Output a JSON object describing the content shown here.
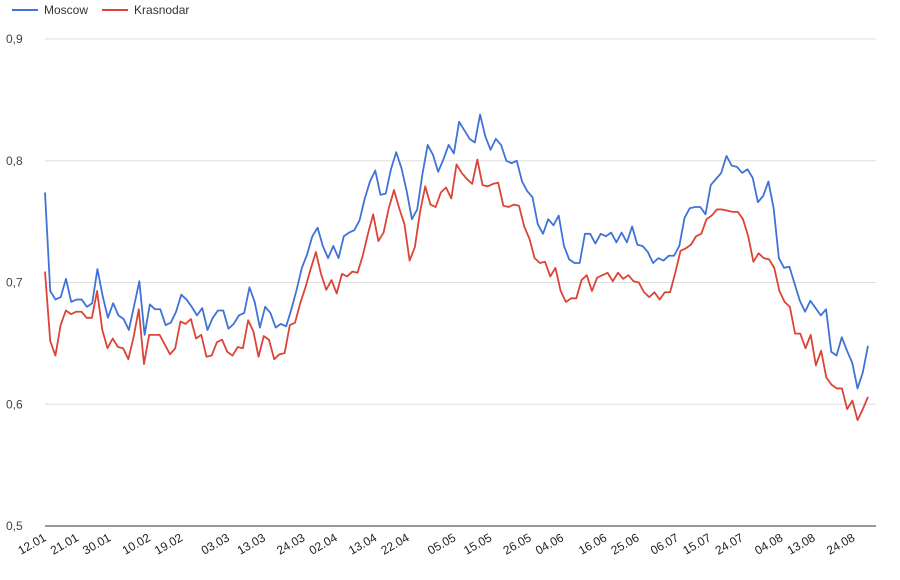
{
  "chart_data": {
    "type": "line",
    "title": "",
    "xlabel": "",
    "ylabel": "",
    "legend_position": "top-left",
    "grid": true,
    "ylim": [
      0.5,
      0.9
    ],
    "yticks": [
      "0,5",
      "0,6",
      "0,7",
      "0,8",
      "0,9"
    ],
    "ytick_values": [
      0.5,
      0.6,
      0.7,
      0.8,
      0.9
    ],
    "x_start": "12.01",
    "x_end": "28.08",
    "xticks": [
      "12.01",
      "21.01",
      "30.01",
      "10.02",
      "19.02",
      "03.03",
      "13.03",
      "24.03",
      "02.04",
      "13.04",
      "22.04",
      "05.05",
      "15.05",
      "26.05",
      "04.06",
      "16.06",
      "25.06",
      "06.07",
      "15.07",
      "24.07",
      "04.08",
      "13.08",
      "24.08"
    ],
    "series": [
      {
        "name": "Moscow",
        "color": "#3f73d7",
        "values": [
          0.774,
          0.693,
          0.686,
          0.688,
          0.703,
          0.684,
          0.686,
          0.686,
          0.68,
          0.683,
          0.711,
          0.689,
          0.671,
          0.683,
          0.673,
          0.67,
          0.661,
          0.681,
          0.701,
          0.657,
          0.682,
          0.678,
          0.678,
          0.665,
          0.667,
          0.676,
          0.69,
          0.686,
          0.68,
          0.673,
          0.679,
          0.661,
          0.671,
          0.677,
          0.677,
          0.662,
          0.666,
          0.673,
          0.675,
          0.696,
          0.684,
          0.663,
          0.68,
          0.675,
          0.663,
          0.666,
          0.664,
          0.678,
          0.694,
          0.712,
          0.723,
          0.738,
          0.745,
          0.73,
          0.72,
          0.73,
          0.72,
          0.738,
          0.741,
          0.743,
          0.751,
          0.769,
          0.783,
          0.792,
          0.772,
          0.773,
          0.793,
          0.807,
          0.794,
          0.775,
          0.752,
          0.76,
          0.789,
          0.813,
          0.805,
          0.791,
          0.801,
          0.813,
          0.806,
          0.832,
          0.825,
          0.818,
          0.815,
          0.838,
          0.82,
          0.809,
          0.818,
          0.813,
          0.8,
          0.798,
          0.8,
          0.783,
          0.775,
          0.77,
          0.748,
          0.74,
          0.752,
          0.747,
          0.755,
          0.73,
          0.719,
          0.716,
          0.716,
          0.74,
          0.74,
          0.732,
          0.74,
          0.738,
          0.741,
          0.733,
          0.741,
          0.733,
          0.746,
          0.731,
          0.73,
          0.725,
          0.716,
          0.72,
          0.718,
          0.722,
          0.722,
          0.73,
          0.753,
          0.761,
          0.762,
          0.762,
          0.756,
          0.78,
          0.785,
          0.79,
          0.804,
          0.796,
          0.795,
          0.79,
          0.793,
          0.786,
          0.766,
          0.771,
          0.783,
          0.761,
          0.72,
          0.712,
          0.713,
          0.699,
          0.685,
          0.676,
          0.685,
          0.679,
          0.673,
          0.678,
          0.643,
          0.64,
          0.655,
          0.644,
          0.634,
          0.613,
          0.626,
          0.648
        ]
      },
      {
        "name": "Krasnodar",
        "color": "#db4437",
        "values": [
          0.709,
          0.652,
          0.64,
          0.665,
          0.677,
          0.674,
          0.676,
          0.676,
          0.671,
          0.671,
          0.693,
          0.661,
          0.646,
          0.654,
          0.647,
          0.646,
          0.637,
          0.655,
          0.678,
          0.633,
          0.657,
          0.657,
          0.657,
          0.649,
          0.641,
          0.646,
          0.668,
          0.666,
          0.67,
          0.654,
          0.657,
          0.639,
          0.64,
          0.651,
          0.653,
          0.643,
          0.64,
          0.647,
          0.646,
          0.669,
          0.66,
          0.639,
          0.656,
          0.653,
          0.637,
          0.641,
          0.642,
          0.665,
          0.667,
          0.683,
          0.696,
          0.711,
          0.725,
          0.707,
          0.694,
          0.702,
          0.691,
          0.707,
          0.705,
          0.709,
          0.708,
          0.722,
          0.74,
          0.756,
          0.734,
          0.741,
          0.761,
          0.776,
          0.761,
          0.748,
          0.718,
          0.729,
          0.758,
          0.779,
          0.764,
          0.762,
          0.774,
          0.778,
          0.769,
          0.797,
          0.79,
          0.785,
          0.781,
          0.801,
          0.78,
          0.779,
          0.781,
          0.782,
          0.763,
          0.762,
          0.764,
          0.763,
          0.746,
          0.736,
          0.72,
          0.716,
          0.717,
          0.705,
          0.712,
          0.693,
          0.684,
          0.687,
          0.687,
          0.702,
          0.706,
          0.693,
          0.704,
          0.706,
          0.708,
          0.701,
          0.708,
          0.703,
          0.706,
          0.701,
          0.7,
          0.692,
          0.688,
          0.692,
          0.686,
          0.692,
          0.692,
          0.708,
          0.726,
          0.728,
          0.731,
          0.738,
          0.74,
          0.752,
          0.755,
          0.76,
          0.76,
          0.759,
          0.758,
          0.758,
          0.752,
          0.738,
          0.717,
          0.724,
          0.72,
          0.719,
          0.712,
          0.693,
          0.684,
          0.68,
          0.658,
          0.658,
          0.646,
          0.657,
          0.632,
          0.644,
          0.622,
          0.616,
          0.613,
          0.613,
          0.596,
          0.603,
          0.587,
          0.596,
          0.606
        ]
      }
    ]
  }
}
